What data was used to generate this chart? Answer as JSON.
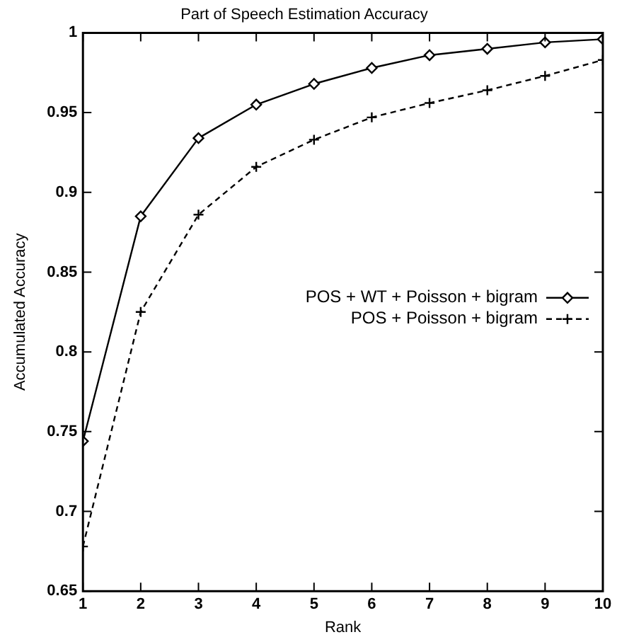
{
  "chart_data": {
    "type": "line",
    "title": "Part of Speech Estimation Accuracy",
    "xlabel": "Rank",
    "ylabel": "Accumulated Accuracy",
    "x": [
      1,
      2,
      3,
      4,
      5,
      6,
      7,
      8,
      9,
      10
    ],
    "series": [
      {
        "name": "POS + WT + Poisson + bigram",
        "color": "#000000",
        "marker": "diamond",
        "line_style": "solid",
        "values": [
          0.744,
          0.885,
          0.934,
          0.955,
          0.968,
          0.978,
          0.986,
          0.99,
          0.994,
          0.996
        ]
      },
      {
        "name": "POS + Poisson + bigram",
        "color": "#000000",
        "marker": "cross",
        "line_style": "dashed",
        "values": [
          0.678,
          0.825,
          0.886,
          0.916,
          0.933,
          0.947,
          0.956,
          0.964,
          0.973,
          0.983
        ]
      }
    ],
    "xlim": [
      1,
      10
    ],
    "xticks": [
      1,
      2,
      3,
      4,
      5,
      6,
      7,
      8,
      9,
      10
    ],
    "ylim": [
      0.65,
      1
    ],
    "yticks": [
      0.65,
      0.7,
      0.75,
      0.8,
      0.85,
      0.9,
      0.95,
      1
    ],
    "grid": false,
    "legend": "right"
  }
}
